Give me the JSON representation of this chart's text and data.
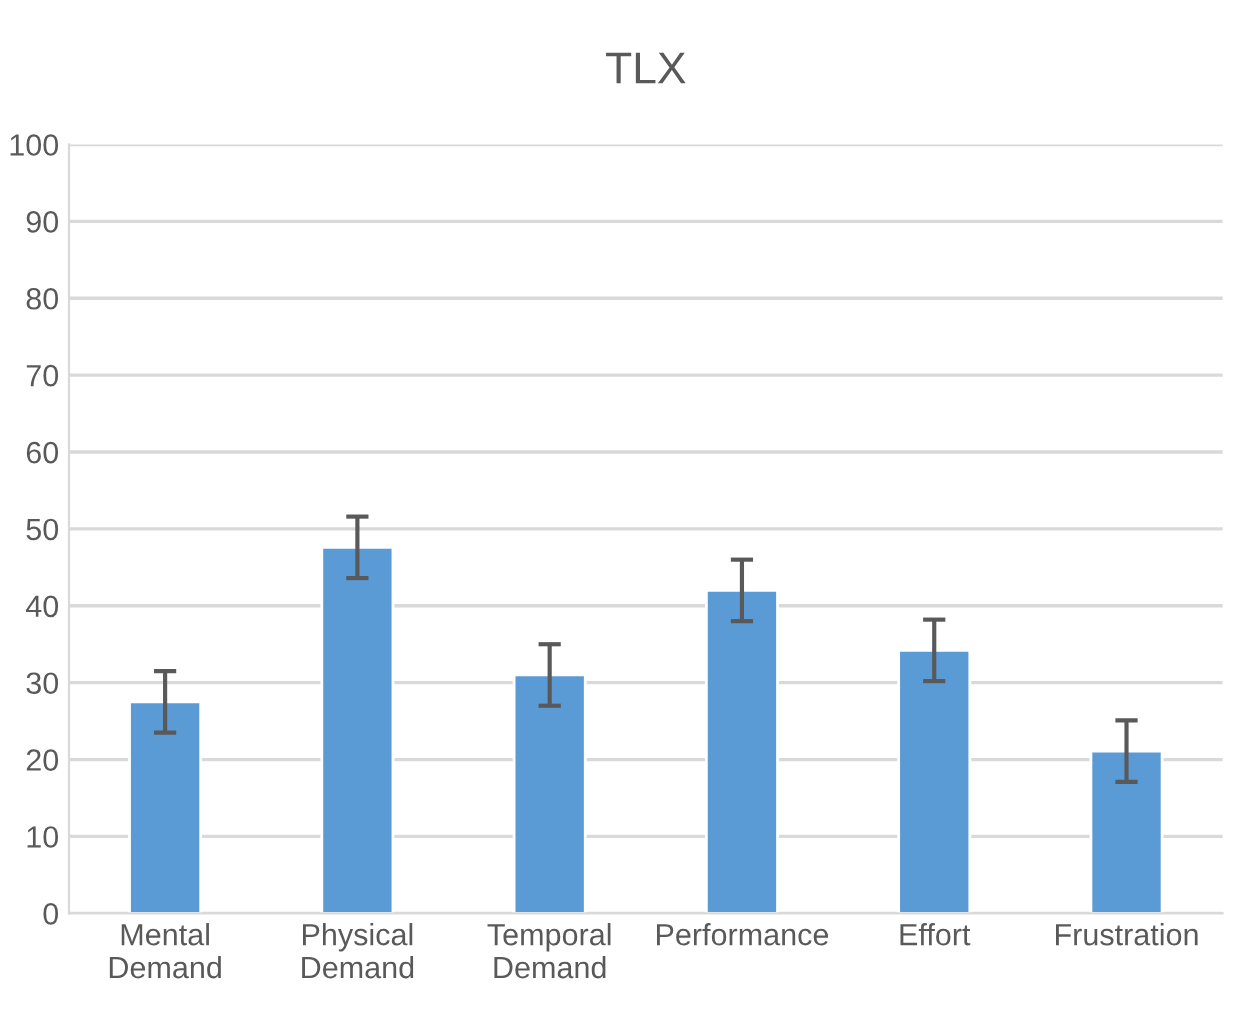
{
  "chart_data": {
    "type": "bar",
    "title": "TLX",
    "categories": [
      "Mental\nDemand",
      "Physical\nDemand",
      "Temporal\nDemand",
      "Performance",
      "Effort",
      "Frustration"
    ],
    "values": [
      27.5,
      47.6,
      31.0,
      42.0,
      34.2,
      21.1
    ],
    "errors": [
      4,
      4,
      4,
      4,
      4,
      4
    ],
    "color": "#5b9bd5",
    "ylim": [
      0,
      100
    ],
    "yticks": [
      0,
      10,
      20,
      30,
      40,
      50,
      60,
      70,
      80,
      90,
      100
    ],
    "grid": "y"
  }
}
